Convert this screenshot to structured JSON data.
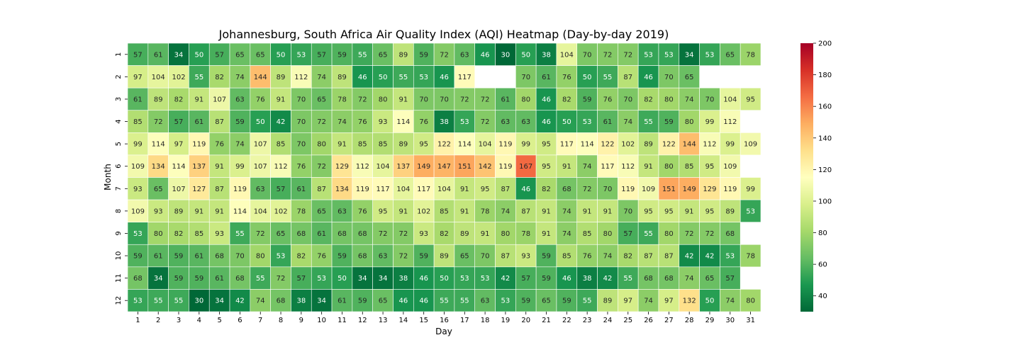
{
  "chart_data": {
    "type": "heatmap",
    "title": "Johannesburg, South Africa Air Quality Index (AQI) Heatmap (Day-by-day 2019)",
    "xlabel": "Day",
    "ylabel": "Month",
    "x_categories": [
      "1",
      "2",
      "3",
      "4",
      "5",
      "6",
      "7",
      "8",
      "9",
      "10",
      "11",
      "12",
      "13",
      "14",
      "15",
      "16",
      "17",
      "18",
      "19",
      "20",
      "21",
      "22",
      "23",
      "24",
      "25",
      "26",
      "27",
      "28",
      "29",
      "30",
      "31"
    ],
    "y_categories": [
      "1",
      "2",
      "3",
      "4",
      "5",
      "6",
      "7",
      "8",
      "9",
      "10",
      "11",
      "12"
    ],
    "values": [
      [
        57,
        61,
        34,
        50,
        57,
        65,
        65,
        50,
        53,
        57,
        59,
        55,
        65,
        89,
        59,
        72,
        63,
        46,
        30,
        50,
        38,
        104,
        70,
        72,
        72,
        53,
        53,
        34,
        53,
        65,
        78
      ],
      [
        97,
        104,
        102,
        55,
        82,
        74,
        144,
        89,
        112,
        74,
        89,
        46,
        50,
        55,
        53,
        46,
        117,
        null,
        null,
        70,
        61,
        76,
        50,
        55,
        87,
        46,
        70,
        65,
        null,
        null,
        null
      ],
      [
        61,
        89,
        82,
        91,
        107,
        63,
        76,
        91,
        70,
        65,
        78,
        72,
        80,
        91,
        70,
        70,
        72,
        72,
        61,
        80,
        46,
        82,
        59,
        76,
        70,
        82,
        80,
        74,
        70,
        104,
        95
      ],
      [
        85,
        72,
        57,
        61,
        87,
        59,
        50,
        42,
        70,
        72,
        74,
        76,
        93,
        114,
        76,
        38,
        53,
        72,
        63,
        63,
        46,
        50,
        53,
        61,
        74,
        55,
        59,
        80,
        99,
        112,
        null
      ],
      [
        99,
        114,
        97,
        119,
        76,
        74,
        107,
        85,
        70,
        80,
        91,
        85,
        85,
        89,
        95,
        122,
        114,
        104,
        119,
        99,
        95,
        117,
        114,
        122,
        102,
        89,
        122,
        144,
        112,
        99,
        109
      ],
      [
        109,
        134,
        114,
        137,
        91,
        99,
        107,
        112,
        76,
        72,
        129,
        112,
        104,
        137,
        149,
        147,
        151,
        142,
        119,
        167,
        95,
        91,
        74,
        117,
        112,
        91,
        80,
        85,
        95,
        109,
        null
      ],
      [
        93,
        65,
        107,
        127,
        87,
        119,
        63,
        57,
        61,
        87,
        134,
        119,
        117,
        104,
        117,
        104,
        91,
        95,
        87,
        46,
        82,
        68,
        72,
        70,
        119,
        109,
        151,
        149,
        129,
        119,
        99
      ],
      [
        109,
        93,
        89,
        91,
        91,
        114,
        104,
        102,
        78,
        65,
        63,
        76,
        95,
        91,
        102,
        85,
        91,
        78,
        74,
        87,
        91,
        74,
        91,
        91,
        70,
        95,
        95,
        91,
        95,
        89,
        53
      ],
      [
        53,
        80,
        82,
        85,
        93,
        55,
        72,
        65,
        68,
        61,
        68,
        68,
        72,
        72,
        93,
        82,
        89,
        91,
        80,
        78,
        91,
        74,
        85,
        80,
        57,
        55,
        80,
        72,
        72,
        68,
        null
      ],
      [
        59,
        61,
        59,
        61,
        68,
        70,
        80,
        53,
        82,
        76,
        59,
        68,
        63,
        72,
        59,
        89,
        65,
        70,
        87,
        93,
        59,
        85,
        76,
        74,
        82,
        87,
        87,
        42,
        42,
        53,
        78
      ],
      [
        68,
        34,
        59,
        59,
        61,
        68,
        55,
        72,
        57,
        53,
        50,
        34,
        34,
        38,
        46,
        50,
        53,
        53,
        42,
        57,
        59,
        46,
        38,
        42,
        55,
        68,
        68,
        74,
        65,
        57,
        null
      ],
      [
        53,
        55,
        55,
        30,
        34,
        42,
        74,
        68,
        38,
        34,
        61,
        59,
        65,
        46,
        46,
        55,
        55,
        63,
        53,
        59,
        65,
        59,
        55,
        89,
        97,
        74,
        97,
        132,
        50,
        74,
        80
      ]
    ],
    "colorscale": "RdYlGn_r",
    "vmin": 30,
    "vmax": 200,
    "colorbar_ticks": [
      40,
      60,
      80,
      100,
      120,
      140,
      160,
      180,
      200
    ],
    "grid": false,
    "legend": "colorbar-right"
  }
}
